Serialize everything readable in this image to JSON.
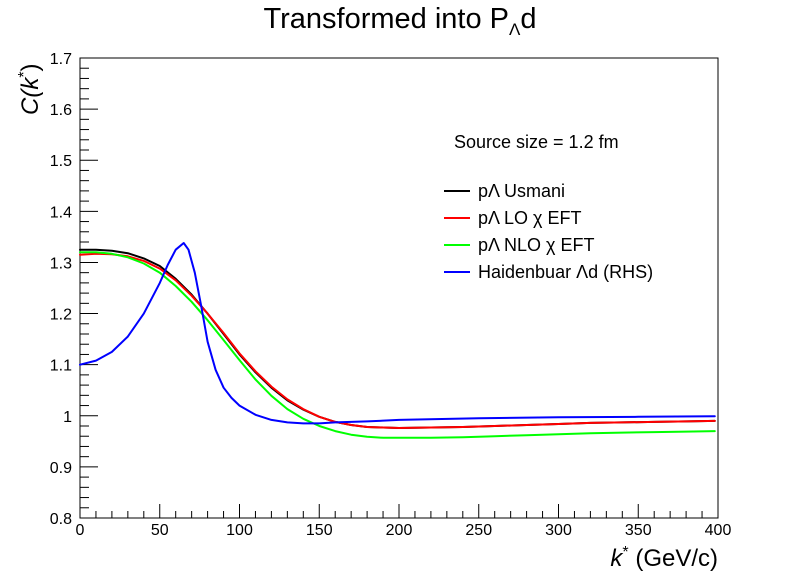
{
  "chart_data": {
    "type": "line",
    "title_main": "Transformed into P",
    "title_sub": "Λ",
    "title_tail": "d",
    "ylabel_main": "C(k",
    "ylabel_sup": "*",
    "ylabel_tail": ")",
    "xlabel_main": "k",
    "xlabel_sup": "*",
    "xlabel_tail": " (GeV/c)",
    "xlim": [
      0,
      400
    ],
    "ylim": [
      0.8,
      1.7
    ],
    "xticks": [
      0,
      50,
      100,
      150,
      200,
      250,
      300,
      350,
      400
    ],
    "yticks": [
      0.8,
      0.9,
      1.0,
      1.1,
      1.2,
      1.3,
      1.4,
      1.5,
      1.6,
      1.7
    ],
    "xtick_labels": [
      "0",
      "50",
      "100",
      "150",
      "200",
      "250",
      "300",
      "350",
      "400"
    ],
    "ytick_labels": [
      "0.8",
      "0.9",
      "1",
      "1.1",
      "1.2",
      "1.3",
      "1.4",
      "1.5",
      "1.6",
      "1.7"
    ],
    "grid": false,
    "annotation": "Source size = 1.2 fm",
    "legend_position": "top-right",
    "series": [
      {
        "name": "pΛ Usmani",
        "color": "#000000",
        "x": [
          0,
          10,
          20,
          30,
          40,
          50,
          60,
          70,
          80,
          90,
          100,
          110,
          120,
          130,
          140,
          150,
          160,
          170,
          180,
          190,
          200,
          220,
          240,
          260,
          280,
          300,
          320,
          340,
          360,
          380,
          398
        ],
        "y": [
          1.325,
          1.325,
          1.323,
          1.318,
          1.308,
          1.293,
          1.268,
          1.237,
          1.2,
          1.16,
          1.12,
          1.085,
          1.055,
          1.03,
          1.012,
          0.998,
          0.988,
          0.982,
          0.978,
          0.977,
          0.976,
          0.977,
          0.978,
          0.98,
          0.982,
          0.984,
          0.986,
          0.987,
          0.988,
          0.989,
          0.99
        ]
      },
      {
        "name": "pΛ LO χ EFT",
        "color": "#ff0000",
        "x": [
          0,
          10,
          20,
          30,
          40,
          50,
          60,
          70,
          80,
          90,
          100,
          110,
          120,
          130,
          140,
          150,
          160,
          170,
          180,
          190,
          200,
          220,
          240,
          260,
          280,
          300,
          320,
          340,
          360,
          380,
          398
        ],
        "y": [
          1.315,
          1.317,
          1.316,
          1.312,
          1.303,
          1.288,
          1.265,
          1.235,
          1.2,
          1.162,
          1.122,
          1.087,
          1.057,
          1.032,
          1.013,
          0.998,
          0.988,
          0.982,
          0.978,
          0.977,
          0.976,
          0.977,
          0.978,
          0.98,
          0.982,
          0.984,
          0.986,
          0.987,
          0.988,
          0.989,
          0.99
        ]
      },
      {
        "name": "pΛ NLO χ EFT",
        "color": "#00ff00",
        "x": [
          0,
          10,
          20,
          30,
          40,
          50,
          60,
          70,
          80,
          90,
          100,
          110,
          120,
          130,
          140,
          150,
          160,
          170,
          180,
          190,
          200,
          220,
          240,
          260,
          280,
          300,
          320,
          340,
          360,
          380,
          398
        ],
        "y": [
          1.32,
          1.32,
          1.317,
          1.31,
          1.298,
          1.28,
          1.254,
          1.223,
          1.187,
          1.148,
          1.109,
          1.071,
          1.039,
          1.013,
          0.994,
          0.98,
          0.97,
          0.963,
          0.959,
          0.957,
          0.957,
          0.957,
          0.958,
          0.96,
          0.962,
          0.964,
          0.966,
          0.967,
          0.968,
          0.969,
          0.97
        ]
      },
      {
        "name": "Haidenbuar Λd (RHS)",
        "color": "#0000ff",
        "x": [
          0,
          10,
          20,
          30,
          40,
          50,
          55,
          60,
          65,
          68,
          72,
          76,
          80,
          85,
          90,
          95,
          100,
          110,
          120,
          130,
          140,
          150,
          160,
          180,
          200,
          250,
          300,
          350,
          398
        ],
        "y": [
          1.1,
          1.108,
          1.125,
          1.155,
          1.2,
          1.26,
          1.295,
          1.325,
          1.338,
          1.325,
          1.28,
          1.215,
          1.145,
          1.09,
          1.055,
          1.035,
          1.02,
          1.002,
          0.992,
          0.987,
          0.985,
          0.985,
          0.987,
          0.989,
          0.992,
          0.995,
          0.997,
          0.998,
          0.999
        ]
      }
    ]
  }
}
